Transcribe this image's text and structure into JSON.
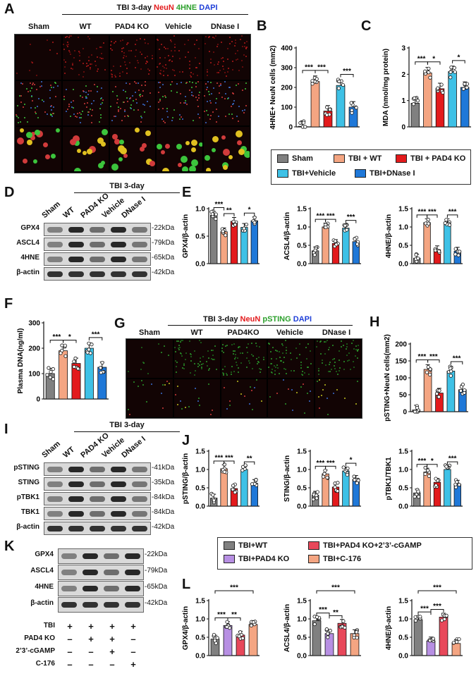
{
  "colors": {
    "sham": "#808080",
    "wt": "#f4a582",
    "ko": "#e31a1c",
    "veh": "#3ec1e6",
    "dnase": "#1f78d8",
    "ctl_wt": "#808080",
    "ctl_ko": "#b78fe3",
    "cgamp": "#e8485a",
    "c176": "#f4a582"
  },
  "panels": {
    "A": "A",
    "B": "B",
    "C": "C",
    "D": "D",
    "E": "E",
    "F": "F",
    "G": "G",
    "H": "H",
    "I": "I",
    "J": "J",
    "K": "K",
    "L": "L"
  },
  "panelA": {
    "header_prefix": "TBI 3-day ",
    "stain1": "NeuN",
    "stain2": "4HNE",
    "stain3": "DAPI",
    "columns": [
      "Sham",
      "WT",
      "PAD4 KO",
      "Vehicle",
      "DNase I"
    ]
  },
  "panelG": {
    "header_prefix": "TBI 3-day ",
    "stain1": "NeuN",
    "stain2": "pSTING",
    "stain3": "DAPI",
    "columns": [
      "Sham",
      "WT",
      "PAD4KO",
      "Vehicle",
      "DNase I"
    ]
  },
  "legend1": {
    "items": [
      "Sham",
      "TBI + WT",
      "TBI + PAD4 KO",
      "TBI+Vehicle",
      "TBI+DNase I"
    ]
  },
  "legend2": {
    "items": [
      "TBI+WT",
      "TBI+PAD4 KO+2’3’-cGAMP",
      "TBI+PAD4 KO",
      "TBI+C-176"
    ]
  },
  "blotD": {
    "header": "TBI 3-day",
    "lanes": [
      "Sham",
      "WT",
      "PAD4 KO",
      "Vehicle",
      "DNase I"
    ],
    "rows": [
      {
        "name": "GPX4",
        "kda": "-22kDa"
      },
      {
        "name": "ASCL4",
        "kda": "-79kDa"
      },
      {
        "name": "4HNE",
        "kda": "-65kDa"
      },
      {
        "name": "β-actin",
        "kda": "-42kDa"
      }
    ]
  },
  "blotI": {
    "header": "TBI 3-day",
    "lanes": [
      "Sham",
      "WT",
      "PAD4 KO",
      "Vehicle",
      "DNase I"
    ],
    "rows": [
      {
        "name": "pSTING",
        "kda": "-41kDa"
      },
      {
        "name": "STING",
        "kda": "-35kDa"
      },
      {
        "name": "pTBK1",
        "kda": "-84kDa"
      },
      {
        "name": "TBK1",
        "kda": "-84kDa"
      },
      {
        "name": "β-actin",
        "kda": "-42kDa"
      }
    ]
  },
  "blotK": {
    "rows": [
      {
        "name": "GPX4",
        "kda": "-22kDa"
      },
      {
        "name": "ASCL4",
        "kda": "-79kDa"
      },
      {
        "name": "4HNE",
        "kda": "-65kDa"
      },
      {
        "name": "β-actin",
        "kda": "-42kDa"
      }
    ],
    "conditions": [
      {
        "name": "TBI",
        "signs": [
          "+",
          "+",
          "+",
          "+"
        ]
      },
      {
        "name": "PAD4 KO",
        "signs": [
          "–",
          "+",
          "+",
          "–"
        ]
      },
      {
        "name": "2’3’-cGAMP",
        "signs": [
          "–",
          "–",
          "+",
          "–"
        ]
      },
      {
        "name": "C-176",
        "signs": [
          "–",
          "–",
          "–",
          "+"
        ]
      }
    ]
  },
  "chart_data": [
    {
      "id": "B",
      "type": "bar",
      "ylabel": "4HNE+ NeuN cells (mm2)",
      "ylim": [
        0,
        400
      ],
      "yticks": [
        0,
        100,
        200,
        300,
        400
      ],
      "categories": [
        "Sham",
        "TBI + WT",
        "TBI + PAD4 KO",
        "TBI+Vehicle",
        "TBI+DNase I"
      ],
      "values": [
        3,
        230,
        80,
        210,
        100
      ],
      "sig": [
        {
          "a": 0,
          "b": 1,
          "label": "***"
        },
        {
          "a": 1,
          "b": 2,
          "label": "***"
        },
        {
          "a": 3,
          "b": 4,
          "label": "***"
        }
      ]
    },
    {
      "id": "C",
      "type": "bar",
      "ylabel": "MDA (nmol/mg protein)",
      "ylim": [
        0,
        3
      ],
      "yticks": [
        0,
        1,
        2,
        3
      ],
      "categories": [
        "Sham",
        "TBI + WT",
        "TBI + PAD4 KO",
        "TBI+Vehicle",
        "TBI+DNase I"
      ],
      "values": [
        0.9,
        2.05,
        1.45,
        2.1,
        1.5
      ],
      "sig": [
        {
          "a": 0,
          "b": 1,
          "label": "***"
        },
        {
          "a": 1,
          "b": 2,
          "label": "*"
        },
        {
          "a": 3,
          "b": 4,
          "label": "*"
        }
      ]
    },
    {
      "id": "E1",
      "type": "bar",
      "ylabel": "GPX4/β-actin",
      "ylim": [
        0,
        1.0
      ],
      "yticks": [
        0.0,
        0.5,
        1.0
      ],
      "categories": [
        "Sham",
        "TBI + WT",
        "TBI + PAD4 KO",
        "TBI+Vehicle",
        "TBI+DNase I"
      ],
      "values": [
        0.88,
        0.58,
        0.77,
        0.66,
        0.78
      ],
      "sig": [
        {
          "a": 0,
          "b": 1,
          "label": "***"
        },
        {
          "a": 1,
          "b": 2,
          "label": "**"
        },
        {
          "a": 3,
          "b": 4,
          "label": "*"
        }
      ]
    },
    {
      "id": "E2",
      "type": "bar",
      "ylabel": "ACSL4/β-actin",
      "ylim": [
        0,
        1.5
      ],
      "yticks": [
        0.0,
        0.5,
        1.0,
        1.5
      ],
      "categories": [
        "Sham",
        "TBI + WT",
        "TBI + PAD4 KO",
        "TBI+Vehicle",
        "TBI+DNase I"
      ],
      "values": [
        0.35,
        1.0,
        0.55,
        0.97,
        0.6
      ],
      "sig": [
        {
          "a": 0,
          "b": 1,
          "label": "***"
        },
        {
          "a": 1,
          "b": 2,
          "label": "***"
        },
        {
          "a": 3,
          "b": 4,
          "label": "***"
        }
      ]
    },
    {
      "id": "E3",
      "type": "bar",
      "ylabel": "4HNE/β-actin",
      "ylim": [
        0,
        1.5
      ],
      "yticks": [
        0.0,
        0.5,
        1.0,
        1.5
      ],
      "categories": [
        "Sham",
        "TBI + WT",
        "TBI + PAD4 KO",
        "TBI+Vehicle",
        "TBI+DNase I"
      ],
      "values": [
        0.15,
        1.12,
        0.38,
        1.12,
        0.34
      ],
      "sig": [
        {
          "a": 0,
          "b": 1,
          "label": "***"
        },
        {
          "a": 1,
          "b": 2,
          "label": "***"
        },
        {
          "a": 3,
          "b": 4,
          "label": "***"
        }
      ]
    },
    {
      "id": "F",
      "type": "bar",
      "ylabel": "Plasma DNA(ng/ml)",
      "ylim": [
        0,
        300
      ],
      "yticks": [
        0,
        100,
        200,
        300
      ],
      "categories": [
        "Sham",
        "TBI + WT",
        "TBI + PAD4 KO",
        "TBI+Vehicle",
        "TBI+DNase I"
      ],
      "values": [
        100,
        190,
        140,
        200,
        125
      ],
      "sig": [
        {
          "a": 0,
          "b": 1,
          "label": "***"
        },
        {
          "a": 1,
          "b": 2,
          "label": "*"
        },
        {
          "a": 3,
          "b": 4,
          "label": "***"
        }
      ]
    },
    {
      "id": "H",
      "type": "bar",
      "ylabel": "pSTING+NeuN cells(mm2)",
      "ylim": [
        0,
        200
      ],
      "yticks": [
        0,
        50,
        100,
        150,
        200
      ],
      "categories": [
        "Sham",
        "TBI + WT",
        "TBI + PAD4 KO",
        "TBI+Vehicle",
        "TBI+DNase I"
      ],
      "values": [
        5,
        125,
        55,
        120,
        65
      ],
      "sig": [
        {
          "a": 0,
          "b": 1,
          "label": "***"
        },
        {
          "a": 1,
          "b": 2,
          "label": "***"
        },
        {
          "a": 3,
          "b": 4,
          "label": "***"
        }
      ]
    },
    {
      "id": "J1",
      "type": "bar",
      "ylabel": "pSTING/β-actin",
      "ylim": [
        0,
        1.5
      ],
      "yticks": [
        0.0,
        0.5,
        1.0,
        1.5
      ],
      "categories": [
        "Sham",
        "TBI + WT",
        "TBI + PAD4 KO",
        "TBI+Vehicle",
        "TBI+DNase I"
      ],
      "values": [
        0.22,
        1.02,
        0.48,
        1.0,
        0.62
      ],
      "sig": [
        {
          "a": 0,
          "b": 1,
          "label": "***"
        },
        {
          "a": 1,
          "b": 2,
          "label": "***"
        },
        {
          "a": 3,
          "b": 4,
          "label": "**"
        }
      ]
    },
    {
      "id": "J2",
      "type": "bar",
      "ylabel": "STING/β-actin",
      "ylim": [
        0,
        1.5
      ],
      "yticks": [
        0.0,
        0.5,
        1.0,
        1.5
      ],
      "categories": [
        "Sham",
        "TBI + WT",
        "TBI + PAD4 KO",
        "TBI+Vehicle",
        "TBI+DNase I"
      ],
      "values": [
        0.3,
        0.88,
        0.52,
        0.96,
        0.73
      ],
      "sig": [
        {
          "a": 0,
          "b": 1,
          "label": "***"
        },
        {
          "a": 1,
          "b": 2,
          "label": "***"
        },
        {
          "a": 3,
          "b": 4,
          "label": "*"
        }
      ]
    },
    {
      "id": "J3",
      "type": "bar",
      "ylabel": "pTBK1/TBK1",
      "ylim": [
        0,
        1.5
      ],
      "yticks": [
        0.0,
        0.5,
        1.0,
        1.5
      ],
      "categories": [
        "Sham",
        "TBI + WT",
        "TBI + PAD4 KO",
        "TBI+Vehicle",
        "TBI+DNase I"
      ],
      "values": [
        0.36,
        0.93,
        0.65,
        1.0,
        0.6
      ],
      "sig": [
        {
          "a": 0,
          "b": 1,
          "label": "***"
        },
        {
          "a": 1,
          "b": 2,
          "label": "*"
        },
        {
          "a": 3,
          "b": 4,
          "label": "***"
        }
      ]
    },
    {
      "id": "L1",
      "type": "bar",
      "ylabel": "GPX4/β-actin",
      "ylim": [
        0,
        1.5
      ],
      "yticks": [
        0.0,
        0.5,
        1.0,
        1.5
      ],
      "categories": [
        "TBI+WT",
        "TBI+PAD4 KO",
        "TBI+PAD4 KO+2’3’-cGAMP",
        "TBI+C-176"
      ],
      "values": [
        0.45,
        0.82,
        0.56,
        0.85
      ],
      "sig": [
        {
          "a": 0,
          "b": 1,
          "label": "***"
        },
        {
          "a": 1,
          "b": 2,
          "label": "**"
        },
        {
          "a": 0,
          "b": 3,
          "label": "***",
          "level": 1
        }
      ]
    },
    {
      "id": "L2",
      "type": "bar",
      "ylabel": "ACSL4/β-actin",
      "ylim": [
        0,
        1.5
      ],
      "yticks": [
        0.0,
        0.5,
        1.0,
        1.5
      ],
      "categories": [
        "TBI+WT",
        "TBI+PAD4 KO",
        "TBI+PAD4 KO+2’3’-cGAMP",
        "TBI+C-176"
      ],
      "values": [
        0.95,
        0.6,
        0.88,
        0.6
      ],
      "sig": [
        {
          "a": 0,
          "b": 1,
          "label": "***"
        },
        {
          "a": 1,
          "b": 2,
          "label": "**"
        },
        {
          "a": 0,
          "b": 3,
          "label": "***",
          "level": 1
        }
      ]
    },
    {
      "id": "L3",
      "type": "bar",
      "ylabel": "4HNE/β-actin",
      "ylim": [
        0,
        1.5
      ],
      "yticks": [
        0.0,
        0.5,
        1.0,
        1.5
      ],
      "categories": [
        "TBI+WT",
        "TBI+PAD4 KO",
        "TBI+PAD4 KO+2’3’-cGAMP",
        "TBI+C-176"
      ],
      "values": [
        0.98,
        0.4,
        1.05,
        0.33
      ],
      "sig": [
        {
          "a": 0,
          "b": 1,
          "label": "***"
        },
        {
          "a": 1,
          "b": 2,
          "label": "***"
        },
        {
          "a": 0,
          "b": 3,
          "label": "***",
          "level": 1
        }
      ]
    }
  ]
}
